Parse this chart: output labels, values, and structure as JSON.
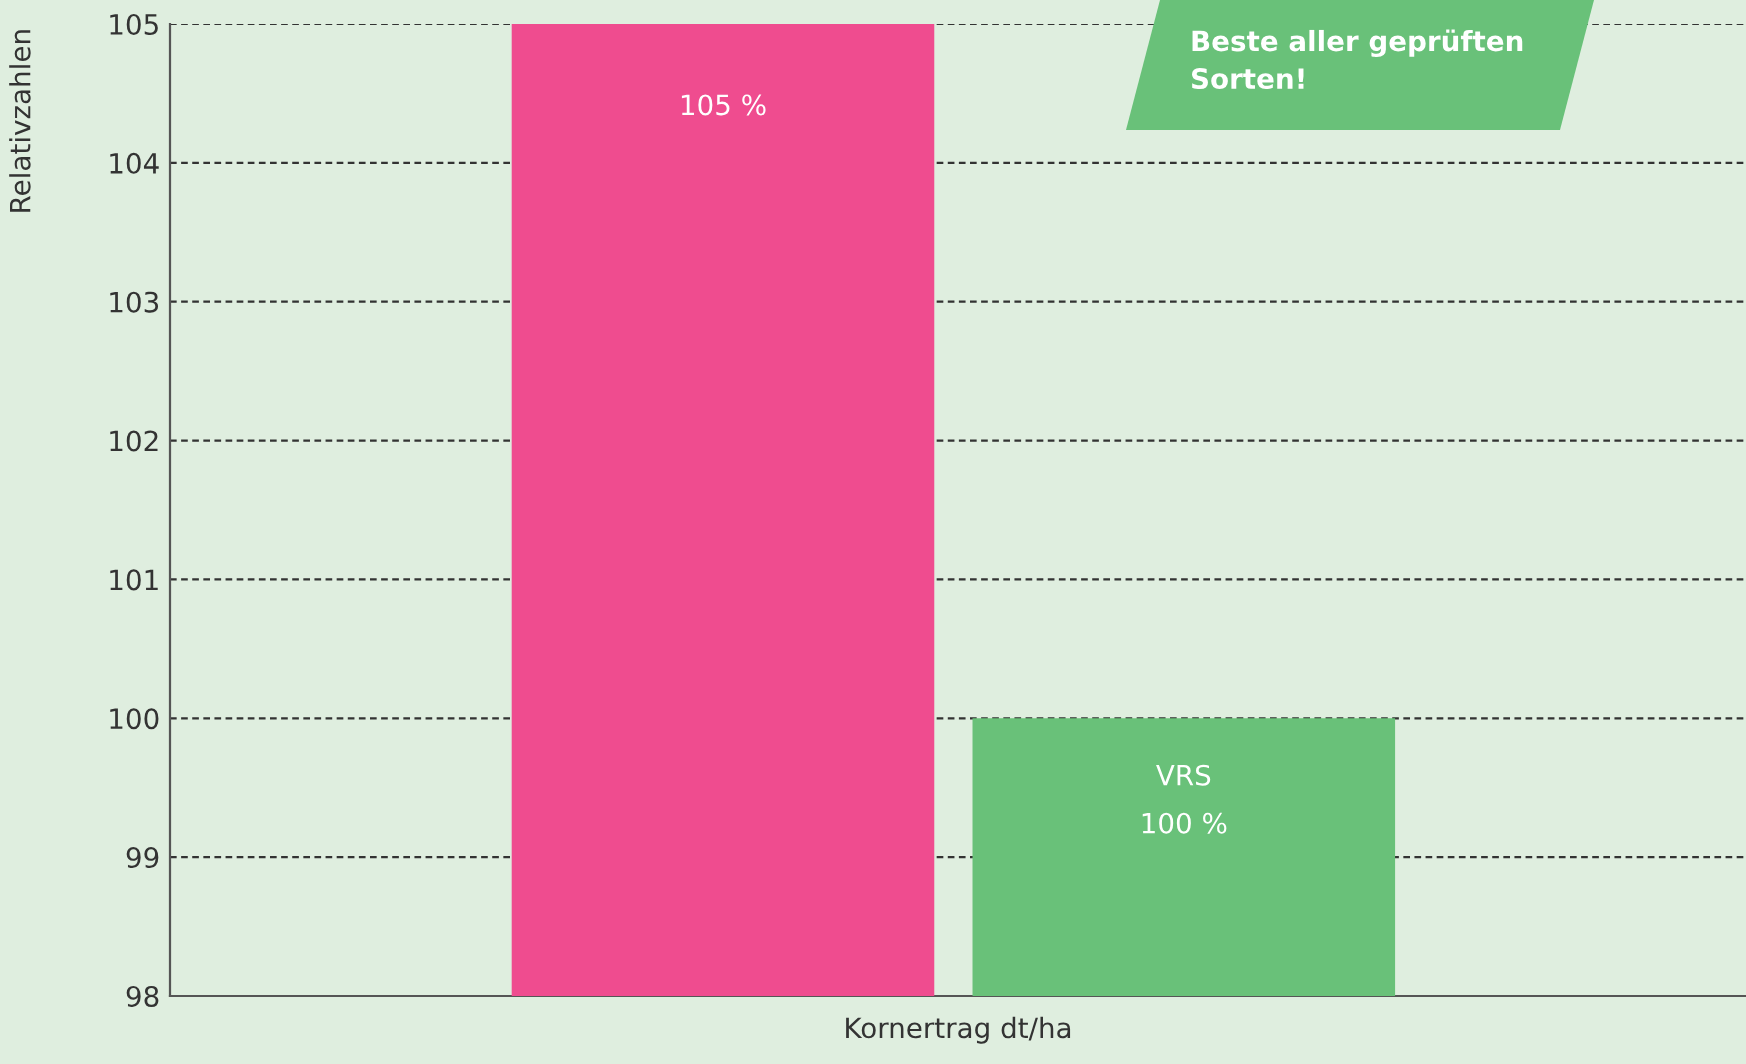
{
  "chart_data": {
    "type": "bar",
    "xlabel": "Kornertrag dt/ha",
    "ylabel": "Relativzahlen",
    "categories": [
      null,
      null
    ],
    "values": [
      105,
      100
    ],
    "colors": [
      "#ef4c8f",
      "#69c179"
    ],
    "value_labels": [
      "105 %",
      "VRS\n100 %"
    ],
    "ylim": [
      98,
      105
    ],
    "yticks": [
      98,
      99,
      100,
      101,
      102,
      103,
      104,
      105
    ],
    "grid": "y",
    "line_style": "dashed",
    "annotations": [
      "Beste aller geprüften\nSorten!"
    ]
  }
}
